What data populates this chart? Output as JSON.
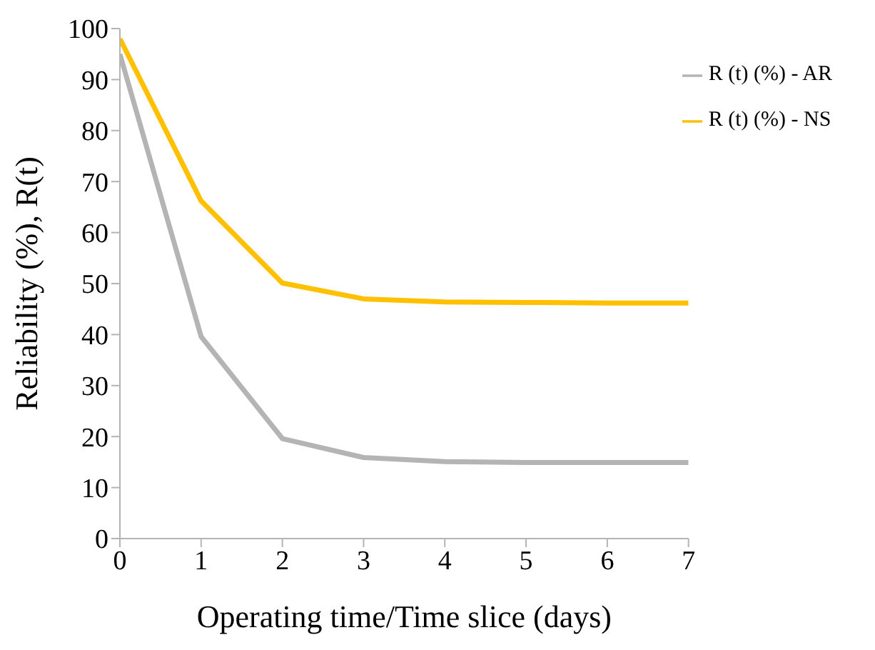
{
  "chart_data": {
    "type": "line",
    "xlabel": "Operating time/Time slice (days)",
    "ylabel": "Reliability (%),  R(t)",
    "x": [
      0,
      1,
      2,
      3,
      4,
      5,
      6,
      7
    ],
    "series": [
      {
        "name": "R (t) (%) - AR",
        "color": "#b4b4b4",
        "values": [
          95,
          39.6,
          19.6,
          15.9,
          15.1,
          14.9,
          14.9,
          14.9
        ]
      },
      {
        "name": "R (t) (%) - NS",
        "color": "#ffc000",
        "values": [
          98,
          66.2,
          50.1,
          47,
          46.4,
          46.3,
          46.2,
          46.2
        ]
      }
    ],
    "xlim": [
      0,
      7
    ],
    "xticks": [
      0,
      1,
      2,
      3,
      4,
      5,
      6,
      7
    ],
    "ylim": [
      0,
      100
    ],
    "yticks": [
      0,
      10,
      20,
      30,
      40,
      50,
      60,
      70,
      80,
      90,
      100
    ],
    "grid": false,
    "legend": "top right",
    "marker": "none",
    "line_style": "solid"
  }
}
